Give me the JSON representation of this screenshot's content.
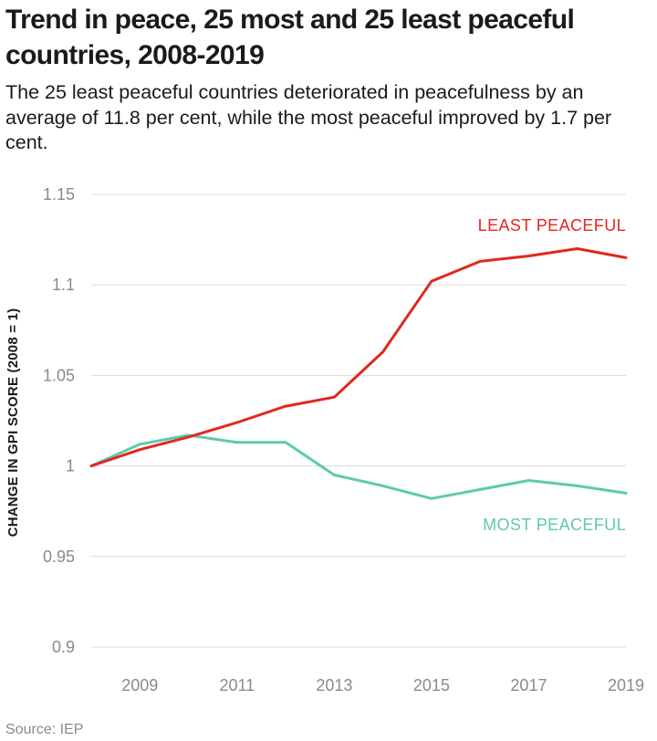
{
  "title": "Trend in peace, 25 most and 25 least peaceful countries, 2008-2019",
  "subtitle": "The 25 least peaceful countries deteriorated in peacefulness by an average of 11.8 per cent, while the most peaceful improved by 1.7 per cent.",
  "source": "Source: IEP",
  "colors": {
    "least": "#e1271f",
    "most": "#5ec9ad",
    "grid": "#dcdcdc",
    "tick": "#8a8a8a"
  },
  "chart_data": {
    "type": "line",
    "title": "Trend in peace, 25 most and 25 least peaceful countries, 2008-2019",
    "subtitle": "The 25 least peaceful countries deteriorated in peacefulness by an average of 11.8 per cent, while the most peaceful improved by 1.7 per cent.",
    "xlabel": "",
    "ylabel": "CHANGE IN GPI SCORE (2008 = 1)",
    "x": [
      2008,
      2009,
      2010,
      2011,
      2012,
      2013,
      2014,
      2015,
      2016,
      2017,
      2018,
      2019
    ],
    "xlim": [
      2008,
      2019
    ],
    "xticks": [
      2009,
      2011,
      2013,
      2015,
      2017,
      2019
    ],
    "ylim": [
      0.9,
      1.15
    ],
    "yticks": [
      0.9,
      0.95,
      1,
      1.05,
      1.1,
      1.15
    ],
    "ytick_labels": [
      "0.9",
      "0.95",
      "1",
      "1.05",
      "1.1",
      "1.15"
    ],
    "grid": true,
    "series": [
      {
        "name": "LEAST PEACEFUL",
        "color": "#e1271f",
        "values": [
          1.0,
          1.009,
          1.016,
          1.024,
          1.033,
          1.038,
          1.063,
          1.102,
          1.113,
          1.116,
          1.12,
          1.115
        ]
      },
      {
        "name": "MOST PEACEFUL",
        "color": "#5ec9ad",
        "values": [
          1.0,
          1.012,
          1.017,
          1.013,
          1.013,
          0.995,
          0.989,
          0.982,
          0.987,
          0.992,
          0.989,
          0.985
        ]
      }
    ]
  }
}
